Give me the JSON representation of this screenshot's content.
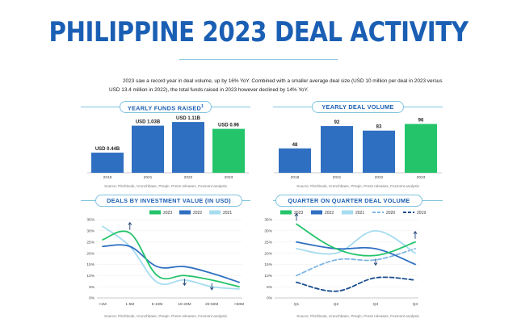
{
  "title": "PHILIPPINE 2023 DEAL ACTIVITY",
  "intro": {
    "line1": "2023 saw a record year in deal volume, up by 16% YoY. Combined with a smaller average deal size (USD 10 million per deal in 2023 versus",
    "line2": "USD 13.4 million in 2022), the total funds raised in 2023 however declined by 14% YoY."
  },
  "colors": {
    "blue": "#2f6fc1",
    "green": "#23c46a",
    "light_blue": "#a6dcef",
    "dark_blue": "#1a4d8f",
    "title": "#1a5fb4"
  },
  "chart_data": [
    {
      "type": "bar",
      "title": "YEARLY FUNDS RAISED",
      "title_superscript": "1",
      "categories": [
        "2018",
        "2021",
        "2022",
        "2023"
      ],
      "values": [
        0.44,
        1.03,
        1.11,
        0.96
      ],
      "value_labels": [
        "USD 0.44B",
        "USD 1.03B",
        "USD 1.11B",
        "USD 0.96"
      ],
      "bar_colors": [
        "#2f6fc1",
        "#2f6fc1",
        "#2f6fc1",
        "#23c46a"
      ],
      "ylim": [
        0,
        1.2
      ],
      "source": "Source: Pitchbook, Crunchbase, Preqin, Press releases, Foxmont analysis"
    },
    {
      "type": "bar",
      "title": "YEARLY DEAL VOLUME",
      "categories": [
        "2018",
        "2021",
        "2022",
        "2023"
      ],
      "values": [
        48,
        92,
        83,
        96
      ],
      "value_labels": [
        "48",
        "92",
        "83",
        "96"
      ],
      "bar_colors": [
        "#2f6fc1",
        "#2f6fc1",
        "#2f6fc1",
        "#23c46a"
      ],
      "ylim": [
        0,
        108
      ],
      "source": "Source: Pitchbook, Crunchbase, Preqin, Press releases, Foxmont analysis"
    },
    {
      "type": "line",
      "title": "DEALS BY INVESTMENT VALUE (IN USD)",
      "categories": [
        "<1M",
        "1-5M",
        "5-10M",
        "10-20M",
        "20-50M",
        ">50M"
      ],
      "y_ticks": [
        "0%",
        "5%",
        "10%",
        "15%",
        "20%",
        "25%",
        "30%",
        "35%"
      ],
      "ylim": [
        0,
        35
      ],
      "legend": [
        "2023",
        "2022",
        "2021"
      ],
      "series": [
        {
          "name": "2023",
          "color": "#23c46a",
          "values": [
            26,
            29,
            10,
            10,
            8,
            5
          ]
        },
        {
          "name": "2022",
          "color": "#2f6fc1",
          "values": [
            23,
            23,
            14,
            14,
            11,
            7
          ]
        },
        {
          "name": "2021",
          "color": "#a6dcef",
          "values": [
            32,
            23,
            7,
            8,
            5,
            4
          ]
        }
      ],
      "arrows": [
        {
          "series": "2023",
          "index": 1,
          "direction": "up"
        },
        {
          "series": "2023",
          "index": 3,
          "direction": "down"
        },
        {
          "series": "2023",
          "index": 4,
          "direction": "down"
        }
      ],
      "source": "Source: Pitchbook, Crunchbase, Preqin, Press releases, Foxmont analysis"
    },
    {
      "type": "line",
      "title": "QUARTER ON QUARTER DEAL VOLUME",
      "categories": [
        "Q1",
        "Q2",
        "Q3",
        "Q4"
      ],
      "y_ticks": [
        "0%",
        "5%",
        "10%",
        "15%",
        "20%",
        "25%",
        "30%",
        "35%"
      ],
      "ylim": [
        0,
        35
      ],
      "legend": [
        "2023",
        "2022",
        "2021",
        "2020",
        "2019"
      ],
      "series": [
        {
          "name": "2023",
          "color": "#23c46a",
          "dashed": false,
          "values": [
            33,
            22,
            19,
            25
          ]
        },
        {
          "name": "2022",
          "color": "#2f6fc1",
          "dashed": false,
          "values": [
            25,
            22,
            22,
            15
          ]
        },
        {
          "name": "2021",
          "color": "#a6dcef",
          "dashed": false,
          "values": [
            22,
            20,
            30,
            20
          ]
        },
        {
          "name": "2020",
          "color": "#7fb6e6",
          "dashed": true,
          "values": [
            10,
            17,
            17,
            22
          ]
        },
        {
          "name": "2019",
          "color": "#1a4d8f",
          "dashed": true,
          "values": [
            7,
            3,
            9,
            8
          ]
        }
      ],
      "arrows": [
        {
          "series": "2023",
          "index": 0,
          "direction": "up"
        },
        {
          "series": "2023",
          "index": 2,
          "direction": "down"
        },
        {
          "series": "2023",
          "index": 3,
          "direction": "up"
        }
      ],
      "source": "Source: Pitchbook, Crunchbase, Preqin, Press releases, Foxmont analysis"
    }
  ]
}
